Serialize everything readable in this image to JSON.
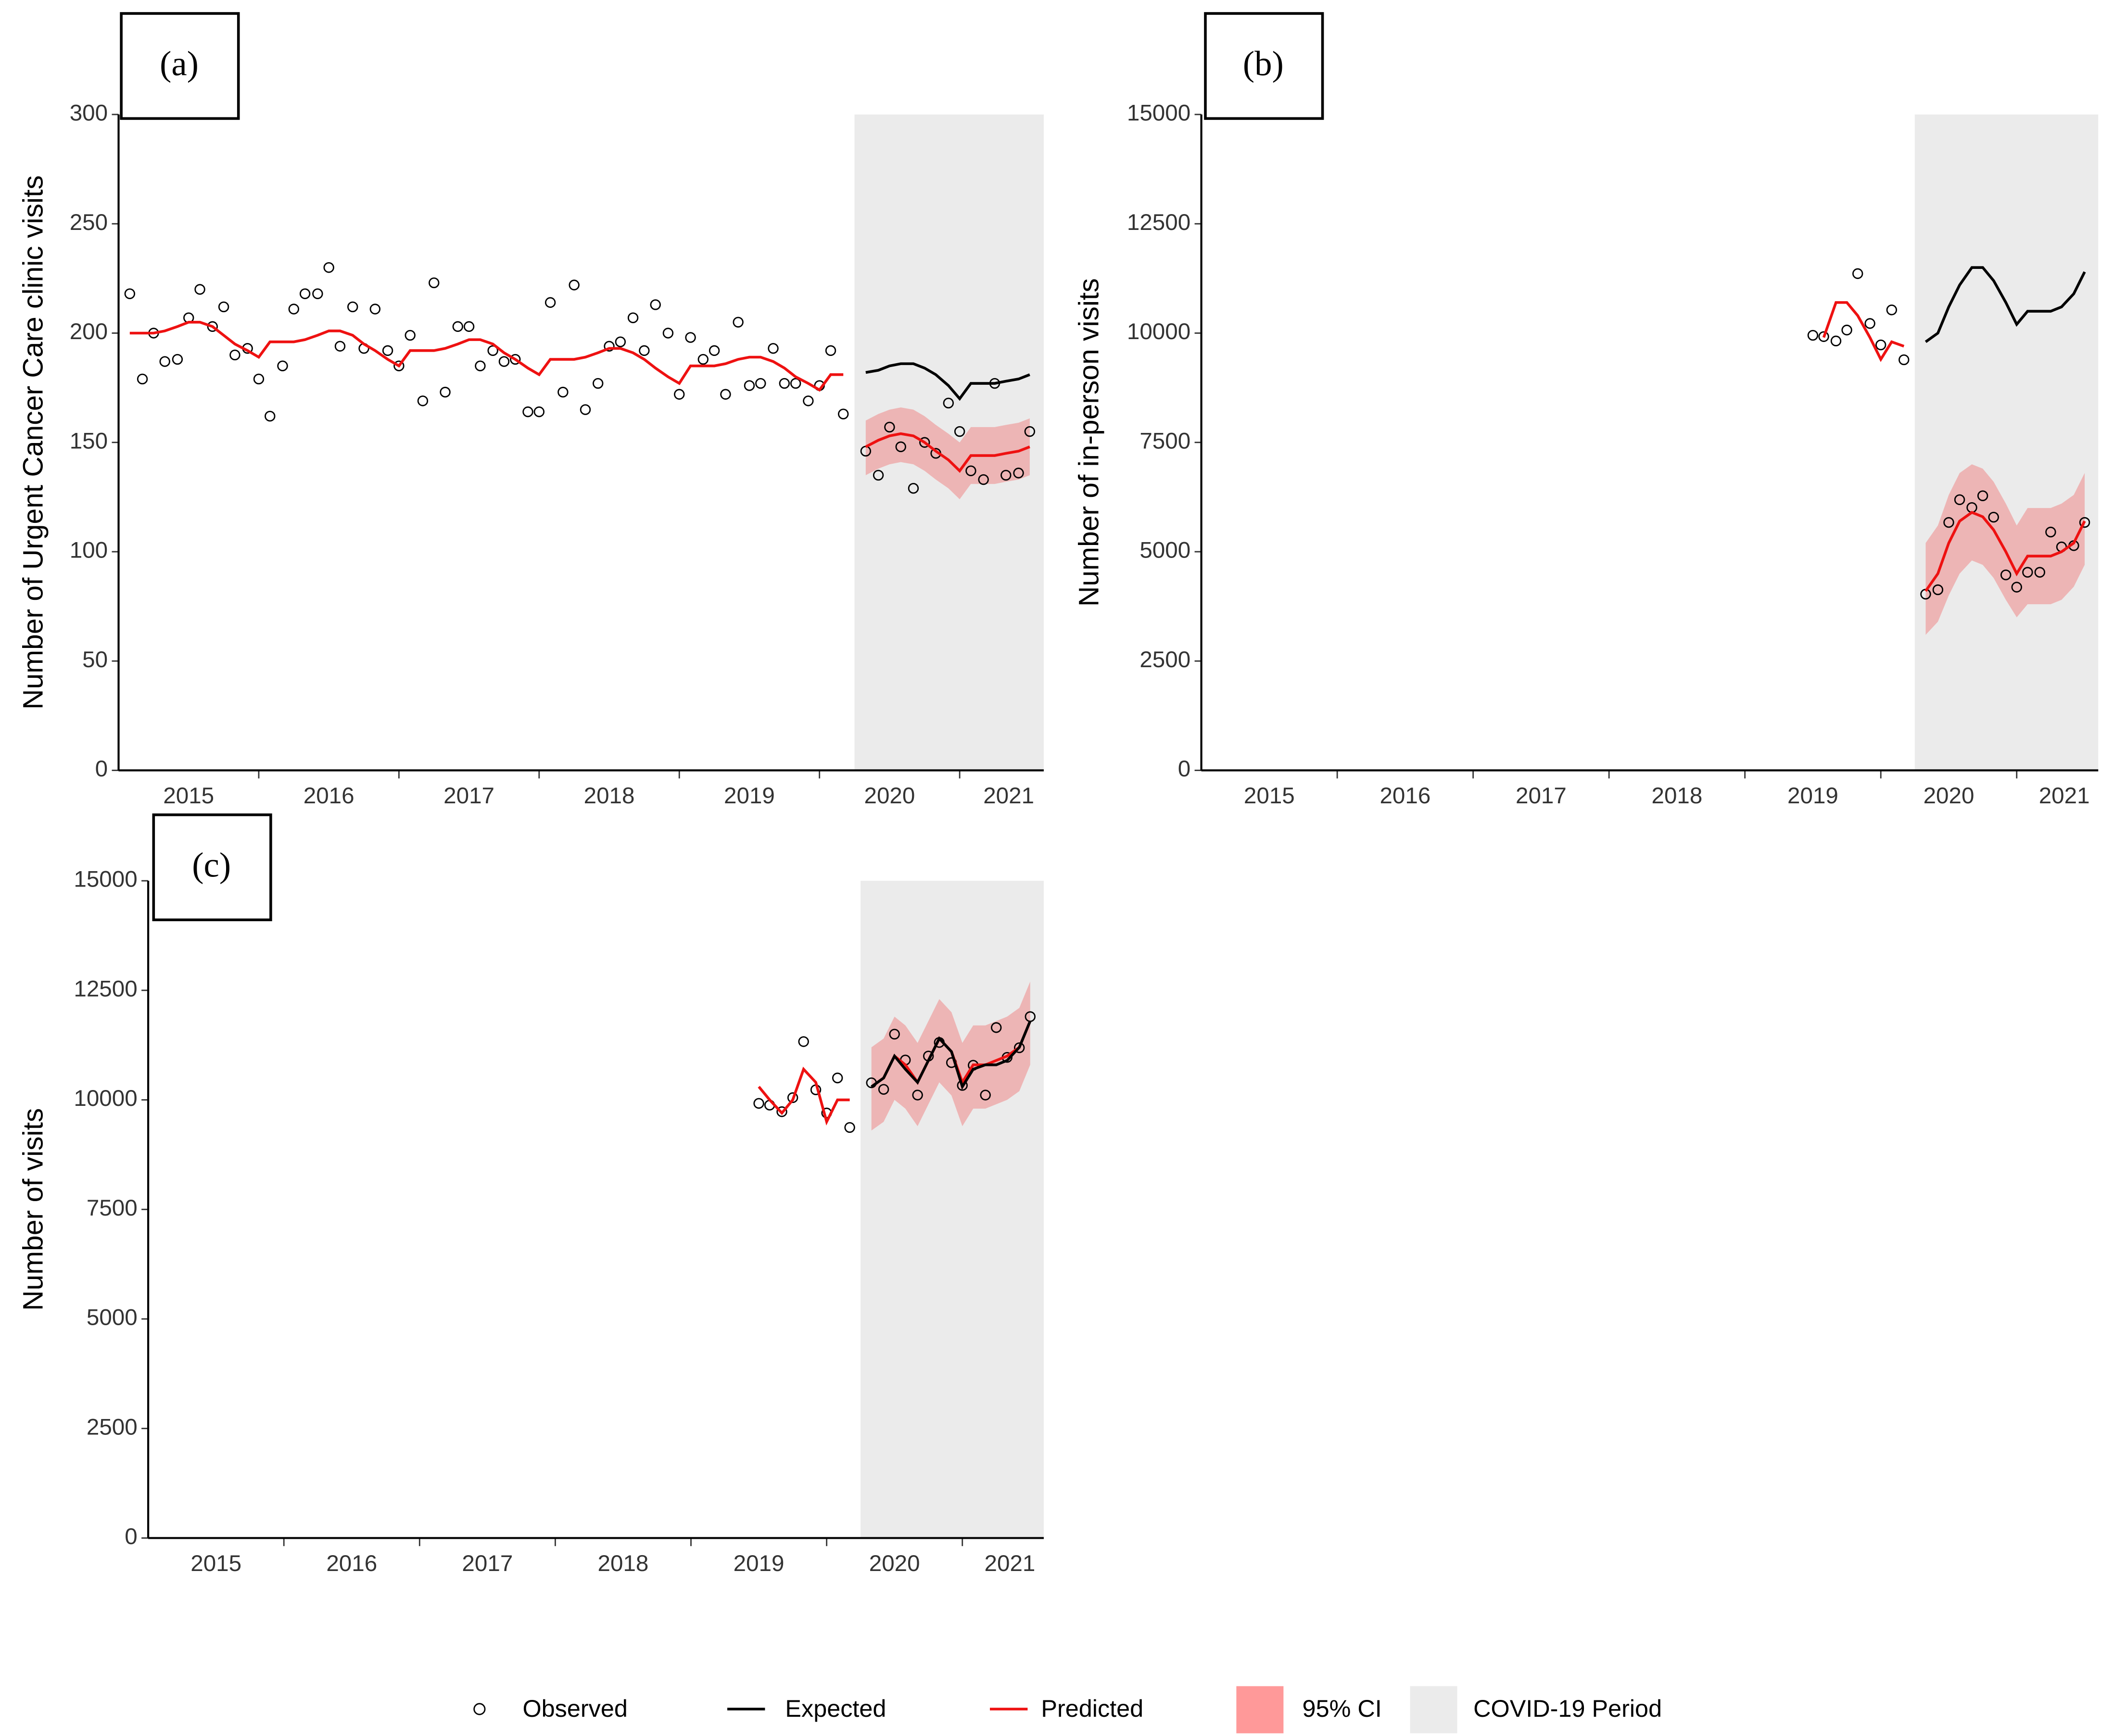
{
  "chart_data": [
    {
      "type": "line",
      "panel_label": "(a)",
      "y_label": "Number of Urgent Cancer Care clinic visits",
      "xlim": [
        2015,
        2021.6
      ],
      "ylim": [
        0,
        300
      ],
      "yticks": [
        0,
        50,
        100,
        150,
        200,
        250,
        300
      ],
      "xticks": [
        {
          "value": 2015.5,
          "label": "2015"
        },
        {
          "value": 2016.5,
          "label": "2016"
        },
        {
          "value": 2017.5,
          "label": "2017"
        },
        {
          "value": 2018.5,
          "label": "2018"
        },
        {
          "value": 2019.5,
          "label": "2019"
        },
        {
          "value": 2020.5,
          "label": "2020"
        },
        {
          "value": 2021.35,
          "label": "2021"
        }
      ],
      "xtick_marks": [
        2016,
        2017,
        2018,
        2019,
        2020,
        2021
      ],
      "shade": {
        "name": "COVID-19 Period",
        "start": 2020.25,
        "end": 2021.6,
        "color": "#ebebeb"
      },
      "bands": [
        {
          "name": "95% CI",
          "color": "#f08080",
          "opacity": 0.5,
          "x": [
            2020.33,
            2020.42,
            2020.5,
            2020.58,
            2020.67,
            2020.75,
            2020.83,
            2020.92,
            2021,
            2021.08,
            2021.17,
            2021.25,
            2021.33,
            2021.42,
            2021.5
          ],
          "lower": [
            135,
            138,
            140,
            141,
            140,
            137,
            133,
            129,
            124,
            131,
            131,
            131,
            132,
            133,
            135
          ],
          "upper": [
            160,
            163,
            165,
            166,
            165,
            162,
            158,
            154,
            150,
            157,
            157,
            157,
            158,
            159,
            161
          ]
        }
      ],
      "series": [
        {
          "name": "Observed",
          "type": "scatter",
          "color": "#000000",
          "x": [
            2015.08,
            2015.17,
            2015.25,
            2015.33,
            2015.42,
            2015.5,
            2015.58,
            2015.67,
            2015.75,
            2015.83,
            2015.92,
            2016,
            2016.08,
            2016.17,
            2016.25,
            2016.33,
            2016.42,
            2016.5,
            2016.58,
            2016.67,
            2016.75,
            2016.83,
            2016.92,
            2017,
            2017.08,
            2017.17,
            2017.25,
            2017.33,
            2017.42,
            2017.5,
            2017.58,
            2017.67,
            2017.75,
            2017.83,
            2017.92,
            2018,
            2018.08,
            2018.17,
            2018.25,
            2018.33,
            2018.42,
            2018.5,
            2018.58,
            2018.67,
            2018.75,
            2018.83,
            2018.92,
            2019,
            2019.08,
            2019.17,
            2019.25,
            2019.33,
            2019.42,
            2019.5,
            2019.58,
            2019.67,
            2019.75,
            2019.83,
            2019.92,
            2020,
            2020.08,
            2020.17,
            2020.33,
            2020.42,
            2020.5,
            2020.58,
            2020.67,
            2020.75,
            2020.83,
            2020.92,
            2021,
            2021.08,
            2021.17,
            2021.25,
            2021.33,
            2021.42,
            2021.5
          ],
          "values": [
            218,
            179,
            200,
            187,
            188,
            207,
            220,
            203,
            212,
            190,
            193,
            179,
            162,
            185,
            211,
            218,
            218,
            230,
            194,
            212,
            193,
            211,
            192,
            185,
            199,
            169,
            223,
            173,
            203,
            203,
            185,
            192,
            187,
            188,
            164,
            164,
            214,
            173,
            222,
            165,
            177,
            194,
            196,
            207,
            192,
            213,
            200,
            172,
            198,
            188,
            192,
            172,
            205,
            176,
            177,
            193,
            177,
            177,
            169,
            176,
            192,
            163,
            146,
            135,
            157,
            148,
            129,
            150,
            145,
            168,
            155,
            137,
            133,
            177,
            135,
            136,
            155
          ]
        },
        {
          "name": "Expected",
          "type": "line",
          "color": "#000000",
          "x": [
            2020.33,
            2020.42,
            2020.5,
            2020.58,
            2020.67,
            2020.75,
            2020.83,
            2020.92,
            2021,
            2021.08,
            2021.17,
            2021.25,
            2021.33,
            2021.42,
            2021.5
          ],
          "values": [
            182,
            183,
            185,
            186,
            186,
            184,
            181,
            176,
            170,
            177,
            177,
            177,
            178,
            179,
            181
          ]
        },
        {
          "name": "Predicted",
          "type": "line",
          "color": "#ee1111",
          "x": [
            2015.08,
            2015.17,
            2015.25,
            2015.33,
            2015.42,
            2015.5,
            2015.58,
            2015.67,
            2015.75,
            2015.83,
            2015.92,
            2016,
            2016.08,
            2016.17,
            2016.25,
            2016.33,
            2016.42,
            2016.5,
            2016.58,
            2016.67,
            2016.75,
            2016.83,
            2016.92,
            2017,
            2017.08,
            2017.17,
            2017.25,
            2017.33,
            2017.42,
            2017.5,
            2017.58,
            2017.67,
            2017.75,
            2017.83,
            2017.92,
            2018,
            2018.08,
            2018.17,
            2018.25,
            2018.33,
            2018.42,
            2018.5,
            2018.58,
            2018.67,
            2018.75,
            2018.83,
            2018.92,
            2019,
            2019.08,
            2019.17,
            2019.25,
            2019.33,
            2019.42,
            2019.5,
            2019.58,
            2019.67,
            2019.75,
            2019.83,
            2019.92,
            2020,
            2020.08,
            2020.17,
            2020.25,
            2020.33,
            2020.42,
            2020.5,
            2020.58,
            2020.67,
            2020.75,
            2020.83,
            2020.92,
            2021,
            2021.08,
            2021.17,
            2021.25,
            2021.33,
            2021.42,
            2021.5
          ],
          "values": [
            200,
            200,
            200,
            201,
            203,
            205,
            205,
            203,
            199,
            195,
            192,
            189,
            196,
            196,
            196,
            197,
            199,
            201,
            201,
            199,
            195,
            192,
            188,
            185,
            192,
            192,
            192,
            193,
            195,
            197,
            197,
            195,
            191,
            188,
            184,
            181,
            188,
            188,
            188,
            189,
            191,
            193,
            193,
            191,
            188,
            184,
            180,
            177,
            185,
            185,
            185,
            186,
            188,
            189,
            189,
            187,
            184,
            180,
            177,
            174,
            181,
            181,
            null,
            148,
            151,
            153,
            154,
            153,
            150,
            146,
            142,
            137,
            144,
            144,
            144,
            145,
            146,
            148
          ]
        }
      ]
    },
    {
      "type": "line",
      "panel_label": "(b)",
      "y_label": "Number of in-person visits",
      "xlim": [
        2015,
        2021.6
      ],
      "ylim": [
        0,
        15000
      ],
      "yticks": [
        0,
        2500,
        5000,
        7500,
        10000,
        12500,
        15000
      ],
      "xticks": [
        {
          "value": 2015.5,
          "label": "2015"
        },
        {
          "value": 2016.5,
          "label": "2016"
        },
        {
          "value": 2017.5,
          "label": "2017"
        },
        {
          "value": 2018.5,
          "label": "2018"
        },
        {
          "value": 2019.5,
          "label": "2019"
        },
        {
          "value": 2020.5,
          "label": "2020"
        },
        {
          "value": 2021.35,
          "label": "2021"
        }
      ],
      "xtick_marks": [
        2016,
        2017,
        2018,
        2019,
        2020,
        2021
      ],
      "shade": {
        "start": 2020.25,
        "end": 2021.6,
        "color": "#ebebeb"
      },
      "bands": [
        {
          "color": "#f08080",
          "opacity": 0.5,
          "x": [
            2020.33,
            2020.42,
            2020.5,
            2020.58,
            2020.67,
            2020.75,
            2020.83,
            2020.92,
            2021,
            2021.08,
            2021.17,
            2021.25,
            2021.33,
            2021.42,
            2021.5
          ],
          "lower": [
            3100,
            3400,
            4000,
            4500,
            4800,
            4700,
            4400,
            3900,
            3500,
            3800,
            3800,
            3800,
            3900,
            4200,
            4700
          ],
          "upper": [
            5200,
            5600,
            6300,
            6800,
            7000,
            6900,
            6600,
            6100,
            5600,
            6000,
            6000,
            6000,
            6100,
            6300,
            6800
          ]
        }
      ],
      "series": [
        {
          "type": "scatter",
          "color": "#000000",
          "x": [
            2019.5,
            2019.58,
            2019.67,
            2019.75,
            2019.83,
            2019.92,
            2020,
            2020.08,
            2020.17,
            2020.33,
            2020.42,
            2020.5,
            2020.58,
            2020.67,
            2020.75,
            2020.83,
            2020.92,
            2021,
            2021.08,
            2021.17,
            2021.25,
            2021.33,
            2021.42,
            2021.5
          ],
          "values": [
            9950,
            9920,
            9820,
            10070,
            11360,
            10220,
            9730,
            10530,
            9390,
            4030,
            4130,
            5670,
            6190,
            6010,
            6280,
            5790,
            4470,
            4190,
            4530,
            4530,
            5450,
            5110,
            5140,
            5670
          ]
        },
        {
          "type": "line",
          "color": "#000000",
          "x": [
            2020.33,
            2020.42,
            2020.5,
            2020.58,
            2020.67,
            2020.75,
            2020.83,
            2020.92,
            2021,
            2021.08,
            2021.17,
            2021.25,
            2021.33,
            2021.42,
            2021.5
          ],
          "values": [
            9800,
            10000,
            10600,
            11100,
            11500,
            11500,
            11200,
            10700,
            10200,
            10500,
            10500,
            10500,
            10600,
            10900,
            11400
          ]
        },
        {
          "type": "line",
          "color": "#ee1111",
          "x": [
            2019.58,
            2019.67,
            2019.75,
            2019.83,
            2019.92,
            2020,
            2020.08,
            2020.17,
            2020.25,
            2020.33,
            2020.42,
            2020.5,
            2020.58,
            2020.67,
            2020.75,
            2020.83,
            2020.92,
            2021,
            2021.08,
            2021.17,
            2021.25,
            2021.33,
            2021.42,
            2021.5
          ],
          "values": [
            9900,
            10700,
            10700,
            10400,
            9900,
            9400,
            9800,
            9700,
            null,
            4100,
            4500,
            5200,
            5700,
            5900,
            5800,
            5500,
            5000,
            4500,
            4900,
            4900,
            4900,
            5000,
            5200,
            5700
          ]
        }
      ]
    },
    {
      "type": "line",
      "panel_label": "(c)",
      "y_label": "Number of visits",
      "xlim": [
        2015,
        2021.6
      ],
      "ylim": [
        0,
        15000
      ],
      "yticks": [
        0,
        2500,
        5000,
        7500,
        10000,
        12500,
        15000
      ],
      "xticks": [
        {
          "value": 2015.5,
          "label": "2015"
        },
        {
          "value": 2016.5,
          "label": "2016"
        },
        {
          "value": 2017.5,
          "label": "2017"
        },
        {
          "value": 2018.5,
          "label": "2018"
        },
        {
          "value": 2019.5,
          "label": "2019"
        },
        {
          "value": 2020.5,
          "label": "2020"
        },
        {
          "value": 2021.35,
          "label": "2021"
        }
      ],
      "xtick_marks": [
        2016,
        2017,
        2018,
        2019,
        2020,
        2021
      ],
      "shade": {
        "start": 2020.25,
        "end": 2021.6,
        "color": "#ebebeb"
      },
      "bands": [
        {
          "color": "#f08080",
          "opacity": 0.5,
          "x": [
            2020.33,
            2020.42,
            2020.5,
            2020.58,
            2020.67,
            2020.75,
            2020.83,
            2020.92,
            2021,
            2021.08,
            2021.17,
            2021.25,
            2021.33,
            2021.42,
            2021.5
          ],
          "lower": [
            9300,
            9500,
            10000,
            9800,
            9400,
            9900,
            10400,
            10100,
            9400,
            9800,
            9800,
            9900,
            10000,
            10200,
            10800
          ],
          "upper": [
            11200,
            11400,
            11900,
            11700,
            11300,
            11800,
            12300,
            12000,
            11300,
            11700,
            11700,
            11800,
            11900,
            12100,
            12700
          ]
        }
      ],
      "series": [
        {
          "type": "scatter",
          "color": "#000000",
          "x": [
            2019.5,
            2019.58,
            2019.67,
            2019.75,
            2019.83,
            2019.92,
            2020,
            2020.08,
            2020.17,
            2020.33,
            2020.42,
            2020.5,
            2020.58,
            2020.67,
            2020.75,
            2020.83,
            2020.92,
            2021,
            2021.08,
            2021.17,
            2021.25,
            2021.33,
            2021.42,
            2021.5
          ],
          "values": [
            9920,
            9880,
            9730,
            10050,
            11330,
            10230,
            9700,
            10500,
            9370,
            10390,
            10240,
            11500,
            10910,
            10110,
            11000,
            11310,
            10850,
            10330,
            10790,
            10110,
            11650,
            10970,
            11190,
            11900
          ]
        },
        {
          "type": "line",
          "color": "#ee1111",
          "x": [
            2019.5,
            2019.58,
            2019.67,
            2019.75,
            2019.83,
            2019.92,
            2020,
            2020.08,
            2020.17,
            2020.25,
            2020.33,
            2020.42,
            2020.5,
            2020.58,
            2020.67,
            2020.75,
            2020.83,
            2020.92,
            2021,
            2021.08,
            2021.17,
            2021.25,
            2021.33,
            2021.42,
            2021.5
          ],
          "values": [
            10300,
            10000,
            9700,
            10000,
            10700,
            10400,
            9500,
            10000,
            10000,
            null,
            10300,
            10500,
            11000,
            10800,
            10400,
            10900,
            11400,
            11100,
            10400,
            10800,
            10800,
            10900,
            11000,
            11200,
            11800
          ]
        },
        {
          "type": "line",
          "color": "#000000",
          "x": [
            2020.33,
            2020.42,
            2020.5,
            2020.58,
            2020.67,
            2020.75,
            2020.83,
            2020.92,
            2021,
            2021.08,
            2021.17,
            2021.25,
            2021.33,
            2021.42,
            2021.5
          ],
          "values": [
            10300,
            10500,
            11000,
            10700,
            10400,
            10900,
            11400,
            11100,
            10300,
            10700,
            10800,
            10800,
            10900,
            11200,
            11800
          ]
        }
      ]
    }
  ]
}
